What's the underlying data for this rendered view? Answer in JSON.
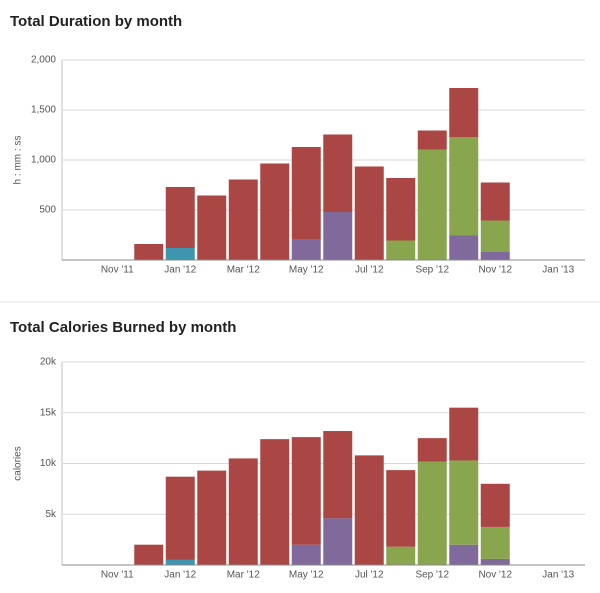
{
  "chart_data": [
    {
      "type": "bar",
      "stacked": true,
      "title": "Total Duration by month",
      "y_label": "h : mm : ss",
      "categories": [
        null,
        "Nov '11",
        null,
        "Jan '12",
        null,
        "Mar '12",
        null,
        "May '12",
        null,
        "Jul '12",
        null,
        "Sep '12",
        null,
        "Nov '12",
        null,
        "Jan '13"
      ],
      "series": [
        {
          "color": "#3d96ae",
          "values": [
            null,
            null,
            null,
            120,
            null,
            null,
            null,
            null,
            null,
            null,
            null,
            null,
            null,
            null,
            null,
            null
          ]
        },
        {
          "color": "#80699b",
          "values": [
            null,
            null,
            null,
            null,
            null,
            null,
            null,
            210,
            480,
            null,
            null,
            null,
            245,
            80,
            null,
            null
          ]
        },
        {
          "color": "#89a54e",
          "values": [
            null,
            null,
            null,
            null,
            null,
            null,
            null,
            null,
            null,
            null,
            195,
            1105,
            985,
            315,
            null,
            null
          ]
        },
        {
          "color": "#aa4643",
          "values": [
            null,
            null,
            160,
            610,
            645,
            805,
            965,
            920,
            775,
            935,
            625,
            190,
            490,
            380,
            null,
            null
          ]
        }
      ],
      "ylim": [
        0,
        2000
      ],
      "yticks": [
        500,
        {
          "value": 1000,
          "label": "1,000"
        },
        {
          "value": 1500,
          "label": "1,500"
        },
        {
          "value": 2000,
          "label": "2,000"
        }
      ],
      "grid": true
    },
    {
      "type": "bar",
      "stacked": true,
      "title": "Total Calories Burned by month",
      "y_label": "calories",
      "categories": [
        null,
        "Nov '11",
        null,
        "Jan '12",
        null,
        "Mar '12",
        null,
        "May '12",
        null,
        "Jul '12",
        null,
        "Sep '12",
        null,
        "Nov '12",
        null,
        "Jan '13"
      ],
      "series": [
        {
          "color": "#3d96ae",
          "values": [
            null,
            null,
            null,
            500,
            null,
            null,
            null,
            null,
            null,
            null,
            null,
            null,
            null,
            null,
            null,
            null
          ]
        },
        {
          "color": "#80699b",
          "values": [
            null,
            null,
            null,
            null,
            null,
            null,
            null,
            2000,
            4600,
            null,
            null,
            null,
            2000,
            600,
            null,
            null
          ]
        },
        {
          "color": "#89a54e",
          "values": [
            null,
            null,
            null,
            null,
            null,
            null,
            null,
            null,
            null,
            null,
            1800,
            10200,
            8300,
            3150,
            null,
            null
          ]
        },
        {
          "color": "#aa4643",
          "values": [
            null,
            null,
            2000,
            8200,
            9300,
            10500,
            12400,
            10600,
            8600,
            10800,
            7550,
            2300,
            5200,
            4250,
            null,
            null
          ]
        }
      ],
      "ylim": [
        0,
        20000
      ],
      "yticks": [
        {
          "value": 5000,
          "label": "5k"
        },
        {
          "value": 10000,
          "label": "10k"
        },
        {
          "value": 15000,
          "label": "15k"
        },
        {
          "value": 20000,
          "label": "20k"
        }
      ],
      "grid": true
    }
  ]
}
